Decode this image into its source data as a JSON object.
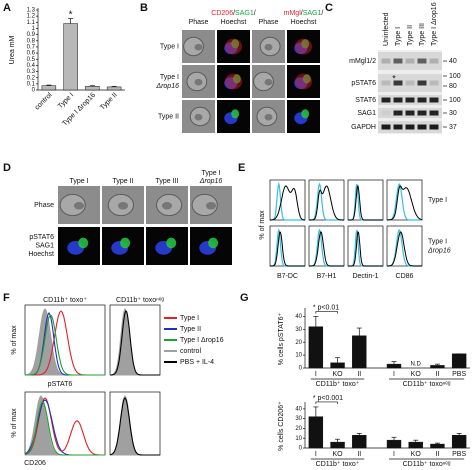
{
  "labels": {
    "A": "A",
    "B": "B",
    "C": "C",
    "D": "D",
    "E": "E",
    "F": "F",
    "G": "G"
  },
  "B": {
    "header_left": [
      {
        "text": "CD206",
        "color": "#e8202a"
      },
      {
        "text": "/",
        "color": "#111111"
      },
      {
        "text": "SAG1",
        "color": "#18a040"
      },
      {
        "text": "/",
        "color": "#111111"
      }
    ],
    "header_right": [
      {
        "text": "mMgl",
        "color": "#e8202a"
      },
      {
        "text": "/",
        "color": "#111111"
      },
      {
        "text": "SAG1",
        "color": "#18a040"
      },
      {
        "text": "/",
        "color": "#111111"
      }
    ],
    "hoechst": {
      "text": "Hoechst",
      "color": "#1f3fd0"
    },
    "phase": "Phase",
    "rows": [
      [
        "Type I"
      ],
      [
        "Type I",
        "Δrop16"
      ],
      [
        "Type II"
      ]
    ]
  },
  "C": {
    "lanes": [
      "Uninfected",
      "Type I",
      "Type II",
      "Type III",
      "Type I Δrop16"
    ],
    "proteins": [
      "mMgl1/2",
      "pSTAT6",
      "STAT6",
      "SAG1",
      "GAPDH"
    ],
    "markers": [
      40,
      100,
      80,
      100,
      30,
      37
    ],
    "mark": "*"
  },
  "D": {
    "columns": [
      [
        "Type I"
      ],
      [
        "Type II"
      ],
      [
        "Type III"
      ],
      [
        "Type I",
        "Δrop16"
      ]
    ],
    "phase": "Phase",
    "stains": [
      {
        "text": "pSTAT6",
        "color": "#e8202a"
      },
      {
        "text": "SAG1",
        "color": "#18a040"
      },
      {
        "text": "Hoechst",
        "color": "#1f3fd0"
      }
    ]
  },
  "E": {
    "ylabel": "% of max",
    "markers": [
      "B7-DC",
      "B7-H1",
      "Dectin-1",
      "CD86"
    ],
    "rows": [
      [
        "Type I"
      ],
      [
        "Type I",
        "Δrop16"
      ]
    ]
  },
  "F": {
    "headers": [
      "CD11b⁺ toxo⁺",
      "CD11b⁺ toxoⁿᵉᵍ"
    ],
    "ylabels": [
      "% of max",
      "% of max"
    ],
    "xlabels": [
      "pSTAT6",
      "CD206"
    ],
    "legend": [
      {
        "name": "Type I",
        "color": "#e0202a"
      },
      {
        "name": "Type II",
        "color": "#2030c0"
      },
      {
        "name": "Type I Δrop16",
        "color": "#20a030"
      },
      {
        "name": "control",
        "color": "#a0a0a0"
      },
      {
        "name": "PBS + IL-4",
        "color": "#000000"
      }
    ]
  },
  "chart_data": [
    {
      "type": "bar",
      "ylabel": "Urea mM",
      "categories": [
        "control",
        "Type I",
        "Type I Δrop16",
        "Type II"
      ],
      "values": [
        0.07,
        1.08,
        0.06,
        0.05
      ],
      "errors": [
        0.01,
        0.08,
        0.01,
        0.01
      ],
      "color": "#b8b8b8",
      "ylim": [
        0,
        1.3
      ],
      "yticks": [
        0,
        0.1,
        0.2,
        0.3,
        0.4,
        0.5,
        0.6,
        0.7,
        0.8,
        0.9,
        1,
        1.1,
        1.2,
        1.3
      ],
      "annotation": "*"
    },
    {
      "type": "bar",
      "ylabel": "% cells pSTAT6⁺",
      "categories": [
        "I",
        "KO",
        "II",
        "I",
        "KO",
        "II",
        "PBS"
      ],
      "values": [
        32,
        4,
        25,
        3,
        null,
        2,
        11
      ],
      "errors": [
        8,
        4,
        6,
        2,
        null,
        1,
        0
      ],
      "color": "#111111",
      "ylim": [
        0,
        45
      ],
      "yticks": [
        0,
        10,
        20,
        30,
        40
      ],
      "groups": [
        "CD11b⁺ toxo⁺",
        "CD11b⁺ toxoⁿᵉᵍ"
      ],
      "annotation": "* p<0.01",
      "missing_label": "N.D"
    },
    {
      "type": "bar",
      "ylabel": "% cells CD206⁺",
      "categories": [
        "I",
        "KO",
        "II",
        "I",
        "KO",
        "II",
        "PBS"
      ],
      "values": [
        32,
        6,
        13,
        8,
        6,
        4,
        13
      ],
      "errors": [
        10,
        3,
        2,
        3,
        2,
        1,
        2
      ],
      "color": "#111111",
      "ylim": [
        0,
        45
      ],
      "yticks": [
        0,
        10,
        20,
        30,
        40
      ],
      "groups": [
        "CD11b⁺ toxo⁺",
        "CD11b⁺ toxoⁿᵉᵍ"
      ],
      "annotation": "* p<0.001"
    }
  ]
}
